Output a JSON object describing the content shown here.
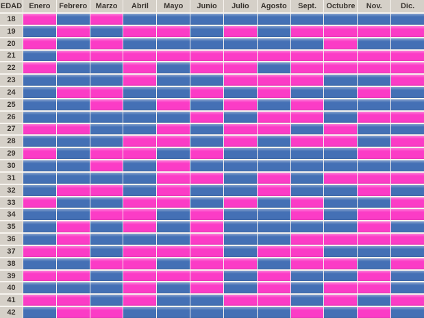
{
  "colors": {
    "pink": "#FB3CC6",
    "blue": "#4470B5",
    "header_bg": "#D5D0C8",
    "header_text": "#3A3530",
    "gridline": "#F7F4EF"
  },
  "table": {
    "corner_label": "EDAD",
    "months": [
      "Enero",
      "Febrero",
      "Marzo",
      "Abril",
      "Mayo",
      "Junio",
      "Julio",
      "Agosto",
      "Sept.",
      "Octubre",
      "Nov.",
      "Dic."
    ],
    "ages": [
      18,
      19,
      20,
      21,
      22,
      23,
      24,
      25,
      26,
      27,
      28,
      29,
      30,
      31,
      32,
      33,
      34,
      35,
      36,
      37,
      38,
      39,
      40,
      41,
      42
    ]
  },
  "chart_data": {
    "type": "heatmap",
    "title": "",
    "xlabel": "",
    "ylabel": "EDAD",
    "x_labels": [
      "Enero",
      "Febrero",
      "Marzo",
      "Abril",
      "Mayo",
      "Junio",
      "Julio",
      "Agosto",
      "Sept.",
      "Octubre",
      "Nov.",
      "Dic."
    ],
    "y_labels": [
      18,
      19,
      20,
      21,
      22,
      23,
      24,
      25,
      26,
      27,
      28,
      29,
      30,
      31,
      32,
      33,
      34,
      35,
      36,
      37,
      38,
      39,
      40,
      41,
      42
    ],
    "encoding": {
      "P": "pink",
      "B": "blue"
    },
    "legend_position": "none",
    "grid": "white gridlines between cells",
    "matrix": [
      "PBPBBBBBBBBB",
      "BPBPPBPBPPPP",
      "PBPBBBBBBPBB",
      "BPPPPPPPPPPP",
      "PBBPBPPBPPPP",
      "BBBPBBPPPBBP",
      "BPPBBPBPBBPB",
      "BBPBPBPBPBBB",
      "BBBBBPBPPBPP",
      "PPBBPBPPBPBB",
      "BBBPPBPBPPBP",
      "PBPPBPBBBBPP",
      "BBPBPBBBBBBB",
      "BBBBPPBPBPPP",
      "BPPBPBBPBBPB",
      "PBBPPBPBPBBP",
      "BBPPBPBBPBPP",
      "BPBPBPBBBBPB",
      "BPBBBPBBPPPP",
      "PPBPPPBPPBBB",
      "BBPPBPPBPPBP",
      "PPBPPPBPBBPB",
      "BBBPBPBPBPPB",
      "PPBPBBPPBPBP",
      "BPPBBBBBPBPB"
    ]
  }
}
